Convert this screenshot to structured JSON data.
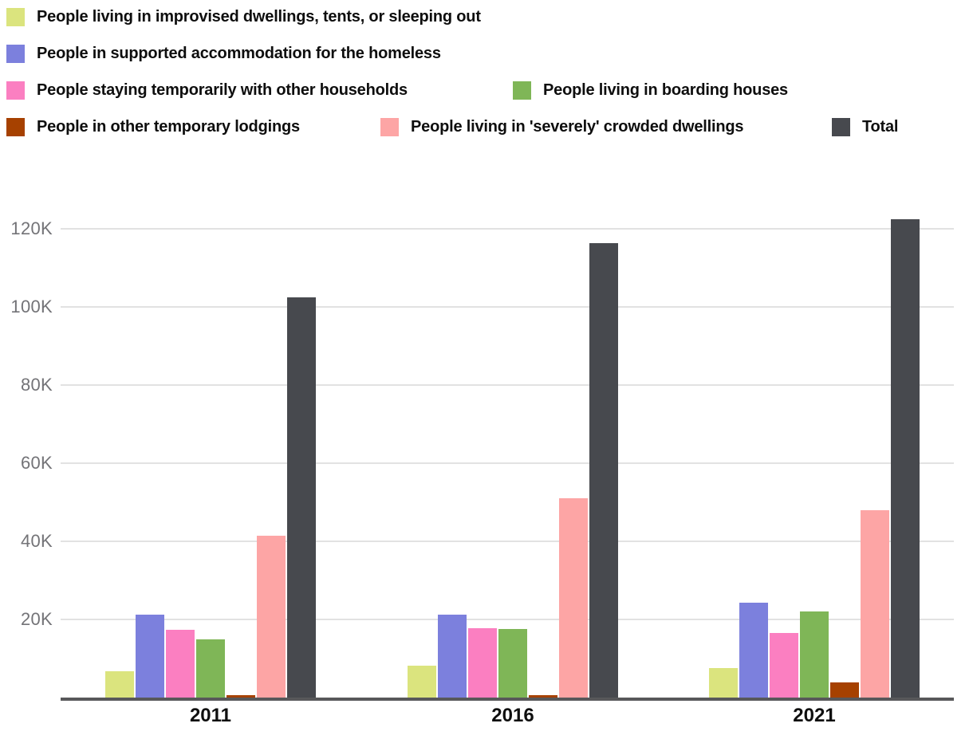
{
  "chart_data": {
    "type": "bar",
    "title": "",
    "xlabel": "",
    "ylabel": "",
    "categories": [
      "2011",
      "2016",
      "2021"
    ],
    "series": [
      {
        "name": "People living in improvised dwellings, tents, or sleeping out",
        "color": "#dbe47e",
        "values": [
          6810,
          8200,
          7636
        ]
      },
      {
        "name": "People in supported accommodation for the homeless",
        "color": "#7c80dd",
        "values": [
          21258,
          21235,
          24291
        ]
      },
      {
        "name": "People staying temporarily with other households",
        "color": "#fb7fc1",
        "values": [
          17369,
          17725,
          16597
        ]
      },
      {
        "name": "People living in boarding houses",
        "color": "#7fb657",
        "values": [
          14944,
          17503,
          22137
        ]
      },
      {
        "name": "People in other temporary lodgings",
        "color": "#a64100",
        "values": [
          686,
          678,
          3934
        ]
      },
      {
        "name": "People living in 'severely' crowded dwellings",
        "color": "#fda5a5",
        "values": [
          41370,
          51088,
          47895
        ]
      },
      {
        "name": "Total",
        "color": "#47494e",
        "values": [
          102439,
          116427,
          122494
        ]
      }
    ],
    "y_ticks": [
      {
        "label": "20K",
        "value": 20000
      },
      {
        "label": "40K",
        "value": 40000
      },
      {
        "label": "60K",
        "value": 60000
      },
      {
        "label": "80K",
        "value": 80000
      },
      {
        "label": "100K",
        "value": 100000
      },
      {
        "label": "120K",
        "value": 120000
      }
    ],
    "ylim": [
      0,
      125000
    ],
    "grid": true,
    "legend_position": "top"
  },
  "colors": {
    "background": "#ffffff",
    "gridline": "#e2e2e2",
    "axis_line": "#58585a",
    "y_tick_text": "#737377",
    "x_tick_text": "#0f0f0f",
    "legend_text": "#0e0e0e"
  }
}
